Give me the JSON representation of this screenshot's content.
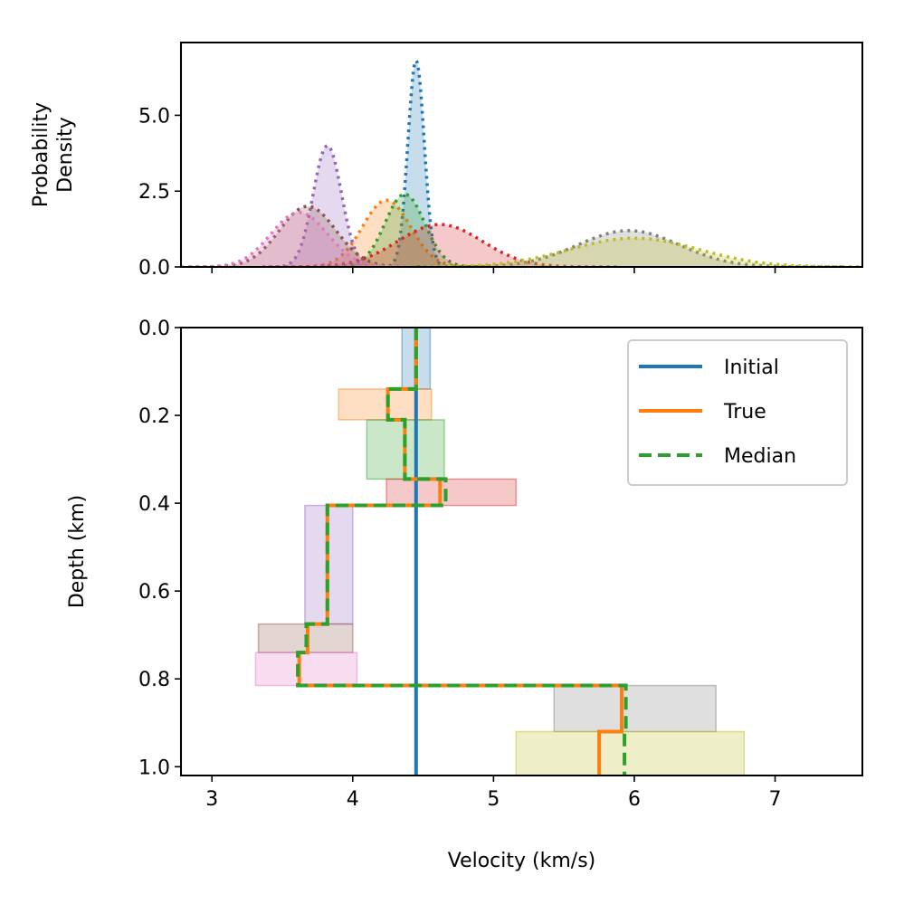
{
  "chart_data": [
    {
      "type": "area",
      "ylabel": [
        "Probability",
        "Density"
      ],
      "xlim": [
        2.78,
        7.62
      ],
      "ylim": [
        0,
        7.4
      ],
      "yticks": [
        0.0,
        2.5,
        5.0
      ],
      "yticklabels": [
        "0.0",
        "2.5",
        "5.0"
      ],
      "xticks": [
        3,
        4,
        5,
        6,
        7
      ],
      "curves": [
        {
          "color": "#1f77b4",
          "mu": 4.45,
          "sigma": 0.058,
          "peak": 6.8
        },
        {
          "color": "#ff7f0e",
          "mu": 4.24,
          "sigma": 0.17,
          "peak": 2.2
        },
        {
          "color": "#2ca02c",
          "mu": 4.37,
          "sigma": 0.14,
          "peak": 2.4
        },
        {
          "color": "#d62728",
          "mu": 4.62,
          "sigma": 0.3,
          "peak": 1.4
        },
        {
          "color": "#9467bd",
          "mu": 3.82,
          "sigma": 0.1,
          "peak": 4.0
        },
        {
          "color": "#8c564b",
          "mu": 3.68,
          "sigma": 0.2,
          "peak": 2.0
        },
        {
          "color": "#e377c2",
          "mu": 3.62,
          "sigma": 0.2,
          "peak": 1.8
        },
        {
          "color": "#7f7f7f",
          "mu": 5.96,
          "sigma": 0.36,
          "peak": 1.2
        },
        {
          "color": "#bcbd22",
          "mu": 6.0,
          "sigma": 0.46,
          "peak": 0.95
        }
      ]
    },
    {
      "type": "line",
      "xlabel": "Velocity (km/s)",
      "ylabel": "Depth (km)",
      "xlim": [
        2.78,
        7.62
      ],
      "ylim": [
        1.02,
        0.0
      ],
      "xticks": [
        3,
        4,
        5,
        6,
        7
      ],
      "xticklabels": [
        "3",
        "4",
        "5",
        "6",
        "7"
      ],
      "yticks": [
        0.0,
        0.2,
        0.4,
        0.6,
        0.8,
        1.0
      ],
      "yticklabels": [
        "0.0",
        "0.2",
        "0.4",
        "0.6",
        "0.8",
        "1.0"
      ],
      "legend_position": "upper-right",
      "boxes": [
        {
          "color": "#1f77b4",
          "v0": 4.35,
          "v1": 4.55,
          "d0": 0.0,
          "d1": 0.14
        },
        {
          "color": "#ff7f0e",
          "v0": 3.9,
          "v1": 4.56,
          "d0": 0.14,
          "d1": 0.21
        },
        {
          "color": "#2ca02c",
          "v0": 4.1,
          "v1": 4.65,
          "d0": 0.21,
          "d1": 0.345
        },
        {
          "color": "#d62728",
          "v0": 4.24,
          "v1": 5.16,
          "d0": 0.345,
          "d1": 0.405
        },
        {
          "color": "#9467bd",
          "v0": 3.66,
          "v1": 4.0,
          "d0": 0.405,
          "d1": 0.675
        },
        {
          "color": "#8c564b",
          "v0": 3.33,
          "v1": 4.0,
          "d0": 0.675,
          "d1": 0.74
        },
        {
          "color": "#e377c2",
          "v0": 3.31,
          "v1": 4.03,
          "d0": 0.74,
          "d1": 0.815
        },
        {
          "color": "#7f7f7f",
          "v0": 5.43,
          "v1": 6.58,
          "d0": 0.815,
          "d1": 0.92
        },
        {
          "color": "#bcbd22",
          "v0": 5.16,
          "v1": 6.78,
          "d0": 0.92,
          "d1": 1.02
        }
      ],
      "series": [
        {
          "name": "Initial",
          "color": "#1f77b4",
          "style": "solid",
          "points": [
            [
              4.45,
              0.0
            ],
            [
              4.45,
              1.02
            ]
          ]
        },
        {
          "name": "True",
          "color": "#ff7f0e",
          "style": "solid",
          "points": [
            [
              4.45,
              0.0
            ],
            [
              4.45,
              0.14
            ],
            [
              4.25,
              0.14
            ],
            [
              4.25,
              0.21
            ],
            [
              4.37,
              0.21
            ],
            [
              4.37,
              0.345
            ],
            [
              4.62,
              0.345
            ],
            [
              4.62,
              0.405
            ],
            [
              3.82,
              0.405
            ],
            [
              3.82,
              0.675
            ],
            [
              3.68,
              0.675
            ],
            [
              3.68,
              0.74
            ],
            [
              3.62,
              0.74
            ],
            [
              3.62,
              0.815
            ],
            [
              5.91,
              0.815
            ],
            [
              5.91,
              0.92
            ],
            [
              5.75,
              0.92
            ],
            [
              5.75,
              1.02
            ]
          ]
        },
        {
          "name": "Median",
          "color": "#2ca02c",
          "style": "dashed",
          "points": [
            [
              4.45,
              0.0
            ],
            [
              4.45,
              0.14
            ],
            [
              4.25,
              0.14
            ],
            [
              4.25,
              0.21
            ],
            [
              4.37,
              0.21
            ],
            [
              4.37,
              0.345
            ],
            [
              4.66,
              0.345
            ],
            [
              4.66,
              0.405
            ],
            [
              3.82,
              0.405
            ],
            [
              3.82,
              0.675
            ],
            [
              3.67,
              0.675
            ],
            [
              3.67,
              0.74
            ],
            [
              3.61,
              0.74
            ],
            [
              3.61,
              0.815
            ],
            [
              5.94,
              0.815
            ],
            [
              5.94,
              0.92
            ],
            [
              5.93,
              0.92
            ],
            [
              5.93,
              1.02
            ]
          ]
        }
      ]
    }
  ]
}
